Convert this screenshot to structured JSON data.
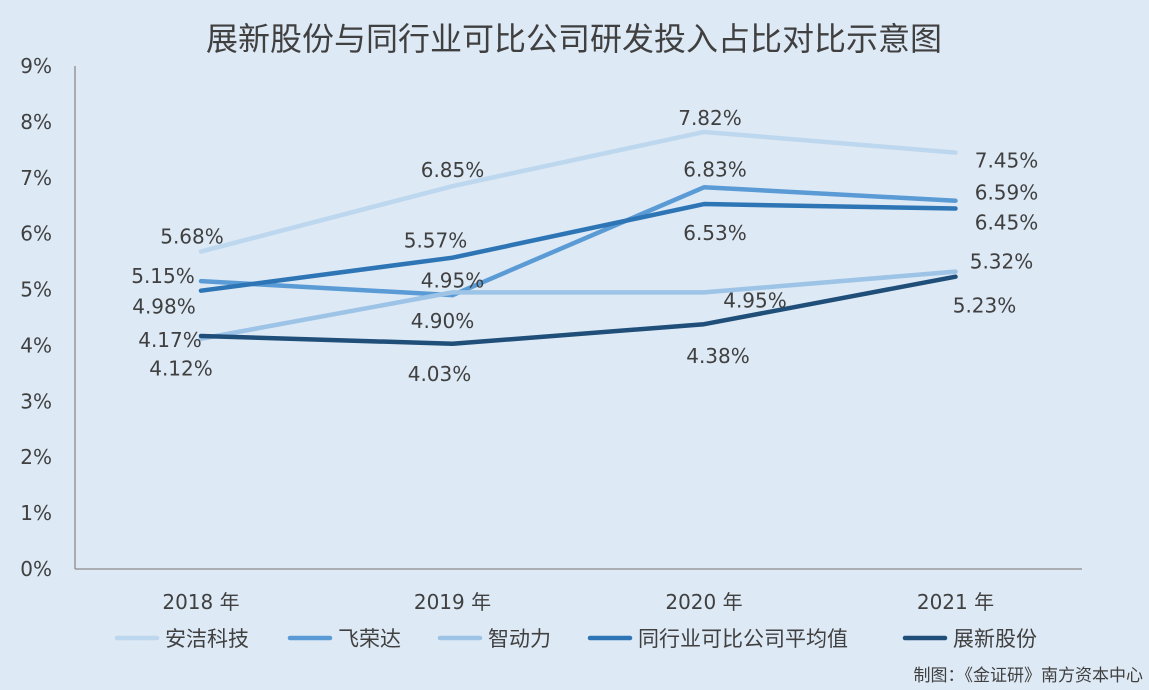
{
  "chart_data": {
    "type": "line",
    "title": "展新股份与同行业可比公司研发投入占比对比示意图",
    "categories": [
      "2018 年",
      "2019 年",
      "2020 年",
      "2021 年"
    ],
    "y_ticks": [
      "0%",
      "1%",
      "2%",
      "3%",
      "4%",
      "5%",
      "6%",
      "7%",
      "8%",
      "9%"
    ],
    "ylim": [
      0,
      9
    ],
    "y_unit": "%",
    "grid": false,
    "legend_position": "bottom",
    "series": [
      {
        "name": "安洁科技",
        "color": "#bdd7ee",
        "values": [
          5.68,
          6.85,
          7.82,
          7.45
        ],
        "labels": [
          "5.68%",
          "6.85%",
          "7.82%",
          "7.45%"
        ]
      },
      {
        "name": "飞荣达",
        "color": "#5b9bd5",
        "values": [
          5.15,
          4.9,
          6.83,
          6.59
        ],
        "labels": [
          "5.15%",
          "4.90%",
          "6.83%",
          "6.59%"
        ]
      },
      {
        "name": "智动力",
        "color": "#9dc3e6",
        "values": [
          4.12,
          4.95,
          4.95,
          5.32
        ],
        "labels": [
          "4.12%",
          "4.95%",
          "4.95%",
          "5.32%"
        ]
      },
      {
        "name": "同行业可比公司平均值",
        "color": "#2e75b6",
        "values": [
          4.98,
          5.57,
          6.53,
          6.45
        ],
        "labels": [
          "4.98%",
          "5.57%",
          "6.53%",
          "6.45%"
        ]
      },
      {
        "name": "展新股份",
        "color": "#1f4e79",
        "values": [
          4.17,
          4.03,
          4.38,
          5.23
        ],
        "labels": [
          "4.17%",
          "4.03%",
          "4.38%",
          "5.23%"
        ]
      }
    ]
  },
  "credit": "制图：《金证研》南方资本中心"
}
